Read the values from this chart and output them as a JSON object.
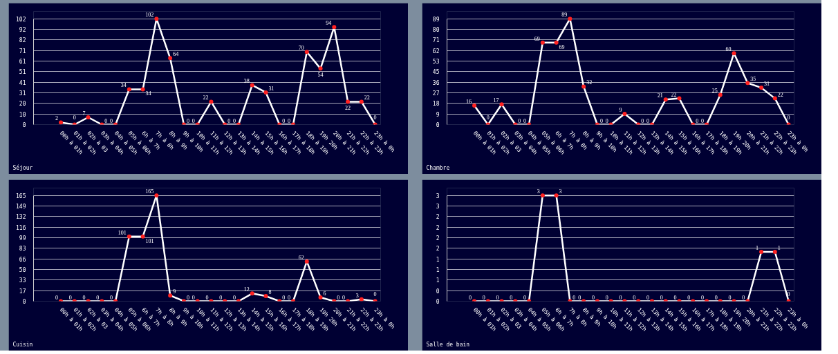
{
  "chart_data": [
    {
      "type": "line",
      "categories": [
        "00h à 01h",
        "01h à 02h",
        "02h à 03",
        "03h à 04h",
        "04h à 05h",
        "05h à 06h",
        "6h à 7h",
        "7h à 8h",
        "8h à 9h",
        "9h à 10h",
        "10h à 11h",
        "11h à 12h",
        "12h à 13h",
        "13h à 14h",
        "14h à 15h",
        "15h à 16h",
        "16h à 17h",
        "17h à 18h",
        "18h à 19h",
        "19h 20h",
        "20h à 21h",
        "21h à 22h",
        "22h à 23h",
        "23h à 0h"
      ],
      "series": [
        {
          "name": "Séjour",
          "color": "#ffffff",
          "values": [
            2,
            0,
            7,
            0,
            0,
            34,
            34,
            102,
            64,
            0,
            0,
            22,
            0,
            0,
            38,
            31,
            0,
            0,
            70,
            54,
            94,
            22,
            22,
            0
          ]
        }
      ],
      "ylim": [
        0,
        102
      ],
      "yticks": [
        0,
        {
          "value": 10.2,
          "label": "10"
        },
        {
          "value": 20.4,
          "label": "20"
        },
        {
          "value": 30.6,
          "label": "31"
        },
        {
          "value": 40.8,
          "label": "41"
        },
        {
          "value": 51,
          "label": "51"
        },
        {
          "value": 61.2,
          "label": "61"
        },
        {
          "value": 71.4,
          "label": "71"
        },
        {
          "value": 81.6,
          "label": "82"
        },
        {
          "value": 91.8,
          "label": "92"
        },
        102
      ],
      "grid": "y",
      "marker": "circle",
      "data_labels": true
    },
    {
      "type": "line",
      "categories": [
        "00h à 01h",
        "01h à 02h",
        "02h à 03",
        "03h à 04h",
        "04h à 05h",
        "05h à 06h",
        "6h à 7h",
        "7h à 8h",
        "8h à 9h",
        "9h à 10h",
        "10h à 11h",
        "11h à 12h",
        "12h à 13h",
        "13h à 14h",
        "14h à 15h",
        "15h à 16h",
        "16h à 17h",
        "17h à 18h",
        "18h à 19h",
        "19h 20h",
        "20h à 21h",
        "21h à 22h",
        "22h à 23h",
        "23h à 0h"
      ],
      "series": [
        {
          "name": "Chambre",
          "color": "#ffffff",
          "values": [
            16,
            0,
            17,
            0,
            0,
            69,
            69,
            89,
            32,
            0,
            0,
            9,
            0,
            0,
            21,
            22,
            0,
            0,
            25,
            60,
            35,
            31,
            22,
            0
          ]
        }
      ],
      "ylim": [
        0,
        89
      ],
      "yticks": [
        0,
        {
          "value": 8.9,
          "label": "9"
        },
        {
          "value": 17.8,
          "label": "18"
        },
        {
          "value": 26.7,
          "label": "27"
        },
        {
          "value": 35.6,
          "label": "36"
        },
        {
          "value": 44.5,
          "label": "45"
        },
        {
          "value": 53.4,
          "label": "53"
        },
        {
          "value": 62.3,
          "label": "62"
        },
        {
          "value": 71.2,
          "label": "71"
        },
        {
          "value": 80.1,
          "label": "80"
        },
        89
      ],
      "grid": "y",
      "marker": "circle",
      "data_labels": true
    },
    {
      "type": "line",
      "categories": [
        "00h à 01h",
        "01h à 02h",
        "02h à 03",
        "03h à 04h",
        "04h à 05h",
        "05h à 06h",
        "6h à 7h",
        "7h à 8h",
        "8h à 9h",
        "9h à 10h",
        "10h à 11h",
        "11h à 12h",
        "12h à 13h",
        "13h à 14h",
        "14h à 15h",
        "15h à 16h",
        "16h à 17h",
        "17h à 18h",
        "18h à 19h",
        "19h 20h",
        "20h à 21h",
        "21h à 22h",
        "22h à 23h",
        "23h à 0h"
      ],
      "series": [
        {
          "name": "Cuisin",
          "color": "#ffffff",
          "values": [
            0,
            0,
            0,
            0,
            0,
            101,
            101,
            165,
            9,
            0,
            0,
            0,
            0,
            0,
            12,
            8,
            0,
            0,
            62,
            6,
            0,
            0,
            3,
            0
          ]
        }
      ],
      "ylim": [
        0,
        165
      ],
      "yticks": [
        0,
        {
          "value": 16.5,
          "label": "17"
        },
        {
          "value": 33,
          "label": "33"
        },
        {
          "value": 49.5,
          "label": "50"
        },
        {
          "value": 66,
          "label": "66"
        },
        {
          "value": 82.5,
          "label": "83"
        },
        {
          "value": 99,
          "label": "99"
        },
        {
          "value": 115.5,
          "label": "116"
        },
        {
          "value": 132,
          "label": "132"
        },
        {
          "value": 148.5,
          "label": "149"
        },
        165
      ],
      "grid": "y",
      "marker": "circle",
      "data_labels": true
    },
    {
      "type": "line",
      "categories": [
        "00h à 01h",
        "01h à 02h",
        "02h à 03",
        "03h à 04h",
        "04h à 05h",
        "05h à 06h",
        "6h à 7h",
        "7h à 8h",
        "8h à 9h",
        "9h à 10h",
        "10h à 11h",
        "11h à 12h",
        "12h à 13h",
        "13h à 14h",
        "14h à 15h",
        "15h à 16h",
        "16h à 17h",
        "17h à 18h",
        "18h à 19h",
        "19h 20h",
        "20h à 21h",
        "21h à 22h",
        "22h à 23h",
        "23h à 0h"
      ],
      "series": [
        {
          "name": "Salle de bain",
          "color": "#ffffff",
          "values": [
            0,
            0,
            0,
            0,
            0,
            3,
            3,
            0,
            0,
            0,
            0,
            0,
            0,
            0,
            0,
            0,
            0,
            0,
            0,
            0,
            0,
            1.4,
            1.4,
            0
          ],
          "value_labels": [
            "0",
            "0",
            "0",
            "0",
            "0",
            "3",
            "3",
            "0",
            "0",
            "0",
            "0",
            "0",
            "0",
            "0",
            "0",
            "0",
            "0",
            "0",
            "0",
            "0",
            "0",
            "1",
            "1",
            "0"
          ]
        }
      ],
      "ylim": [
        0,
        3
      ],
      "yticks": [
        0,
        {
          "value": 0.3,
          "label": "0"
        },
        {
          "value": 0.6,
          "label": "1"
        },
        {
          "value": 0.9,
          "label": "1"
        },
        {
          "value": 1.2,
          "label": "1"
        },
        {
          "value": 1.5,
          "label": "2"
        },
        {
          "value": 1.8,
          "label": "2"
        },
        {
          "value": 2.1,
          "label": "2"
        },
        {
          "value": 2.4,
          "label": "2"
        },
        {
          "value": 2.7,
          "label": "3"
        },
        3
      ],
      "grid": "y",
      "marker": "circle"
    }
  ]
}
